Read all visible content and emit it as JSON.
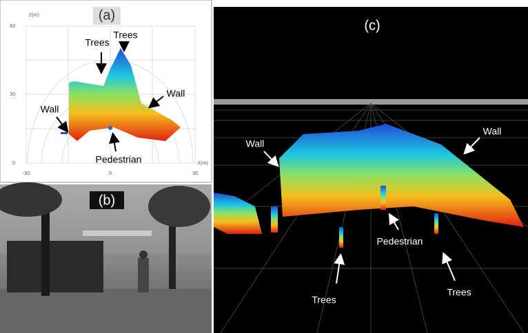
{
  "panels": {
    "a": {
      "label": "(a)",
      "y_axis_label": "Z(m)",
      "x_axis_label": "X(m)",
      "y_ticks": [
        "60",
        "30",
        "0"
      ],
      "x_ticks": [
        "-30",
        "0",
        "30"
      ],
      "annotations": [
        "Trees",
        "Trees",
        "Wall",
        "Wall",
        "Pedestrian"
      ]
    },
    "b": {
      "label": "(b)"
    },
    "c": {
      "label": "(c)",
      "annotations": [
        "Wall",
        "Wall",
        "Pedestrian",
        "Trees",
        "Trees"
      ]
    }
  }
}
